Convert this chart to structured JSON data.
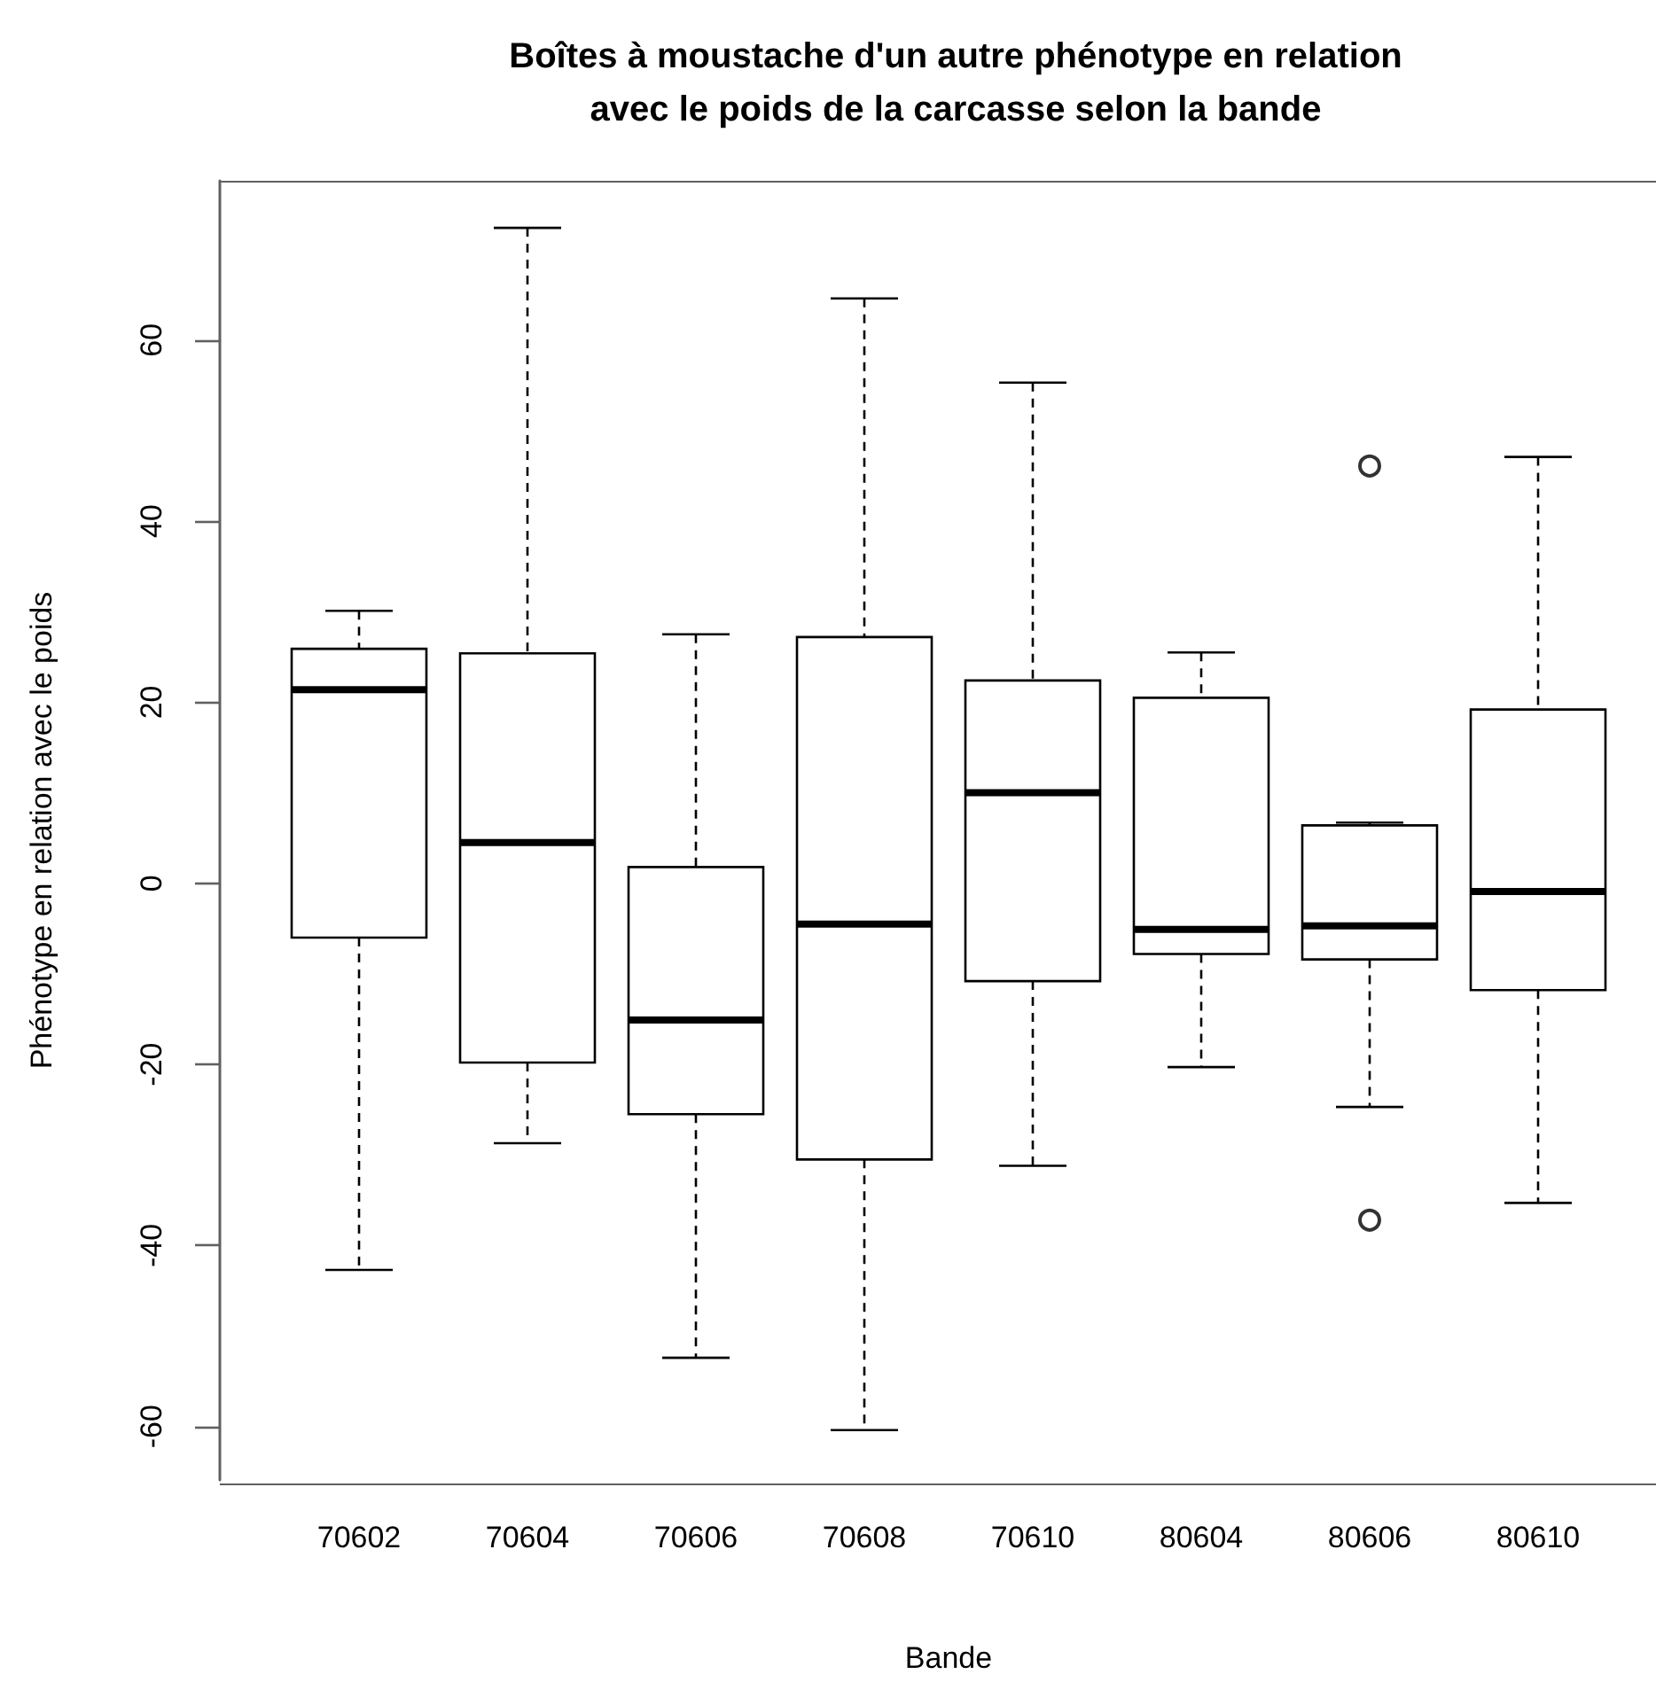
{
  "chart_data": {
    "type": "box",
    "title": "Boîtes à moustache d'un autre phénotype en relation\navec le poids de la carcasse selon la bande",
    "xlabel": "Bande",
    "ylabel": "Phénotype en relation avec le poids",
    "categories": [
      "70602",
      "70604",
      "70606",
      "70608",
      "70610",
      "80604",
      "80606",
      "80610"
    ],
    "boxes": [
      {
        "low": -42.7,
        "q1": -6.0,
        "median": 21.4,
        "q3": 25.9,
        "high": 30.1
      },
      {
        "low": -28.7,
        "q1": -19.8,
        "median": 4.5,
        "q3": 25.4,
        "high": 72.4
      },
      {
        "low": -52.4,
        "q1": -25.5,
        "median": -15.1,
        "q3": 1.8,
        "high": 27.5
      },
      {
        "low": -60.4,
        "q1": -30.5,
        "median": -4.5,
        "q3": 27.2,
        "high": 64.6
      },
      {
        "low": -31.2,
        "q1": -10.8,
        "median": 10.0,
        "q3": 22.4,
        "high": 55.3
      },
      {
        "low": -20.3,
        "q1": -7.8,
        "median": -5.1,
        "q3": 20.5,
        "high": 25.5
      },
      {
        "low": -24.7,
        "q1": -8.4,
        "median": -4.7,
        "q3": 6.4,
        "high": 6.7,
        "outliers": [
          46.1,
          -37.2
        ]
      },
      {
        "low": -35.3,
        "q1": -11.8,
        "median": -0.9,
        "q3": 19.2,
        "high": 47.1
      }
    ],
    "ylim": [
      -65.9,
      77.6
    ],
    "yticks": [
      -60,
      -40,
      -20,
      0,
      20,
      40,
      60
    ],
    "grid": false
  }
}
